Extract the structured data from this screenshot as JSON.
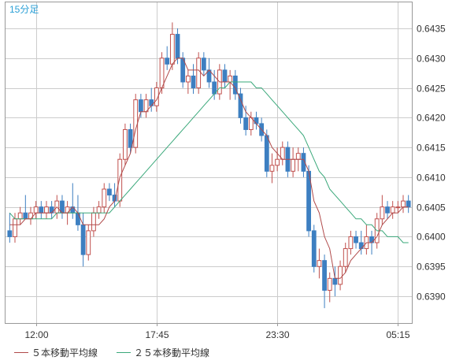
{
  "chart_data": {
    "type": "candlestick",
    "interval_label": "15分足",
    "y_ticks": [
      "0.6390",
      "0.6395",
      "0.6400",
      "0.6405",
      "0.6410",
      "0.6415",
      "0.6420",
      "0.6425",
      "0.6430",
      "0.6435"
    ],
    "x_ticks": [
      "12:00",
      "17:45",
      "23:30",
      "05:15"
    ],
    "ylim": [
      0.63855,
      0.64395
    ],
    "grid": true,
    "colors": {
      "up": "#c0504d",
      "down": "#3d7fc1",
      "ma5": "#b04a4a",
      "ma25": "#3aa87a",
      "grid": "#cccccc",
      "frame": "#999999"
    },
    "legend": [
      {
        "label": "５本移動平均線",
        "color": "#b04a4a"
      },
      {
        "label": "２５本移動平均線",
        "color": "#3aa87a"
      }
    ],
    "candles": [
      [
        0.6401,
        0.6404,
        0.6399,
        0.64
      ],
      [
        0.64,
        0.6404,
        0.6399,
        0.6403
      ],
      [
        0.6403,
        0.6405,
        0.6402,
        0.6404
      ],
      [
        0.6404,
        0.6407,
        0.6403,
        0.6403
      ],
      [
        0.6403,
        0.6405,
        0.6402,
        0.6404
      ],
      [
        0.6404,
        0.6406,
        0.6403,
        0.6405
      ],
      [
        0.6405,
        0.6406,
        0.6403,
        0.6404
      ],
      [
        0.6404,
        0.6406,
        0.6403,
        0.6405
      ],
      [
        0.6405,
        0.6406,
        0.6403,
        0.6404
      ],
      [
        0.6404,
        0.6407,
        0.6403,
        0.6406
      ],
      [
        0.6406,
        0.6407,
        0.6403,
        0.6404
      ],
      [
        0.6404,
        0.6406,
        0.6402,
        0.6405
      ],
      [
        0.6405,
        0.6409,
        0.6403,
        0.6404
      ],
      [
        0.6404,
        0.6407,
        0.6401,
        0.6402
      ],
      [
        0.6402,
        0.6404,
        0.6395,
        0.6397
      ],
      [
        0.6397,
        0.6402,
        0.6396,
        0.6401
      ],
      [
        0.6401,
        0.6405,
        0.64,
        0.6404
      ],
      [
        0.6404,
        0.6406,
        0.6403,
        0.6405
      ],
      [
        0.6405,
        0.6409,
        0.6404,
        0.6408
      ],
      [
        0.6408,
        0.6409,
        0.6406,
        0.6407
      ],
      [
        0.6407,
        0.6409,
        0.6405,
        0.6406
      ],
      [
        0.6406,
        0.6414,
        0.6405,
        0.6413
      ],
      [
        0.6413,
        0.6419,
        0.6412,
        0.6418
      ],
      [
        0.6418,
        0.6419,
        0.6414,
        0.6415
      ],
      [
        0.6415,
        0.6424,
        0.6414,
        0.6423
      ],
      [
        0.6423,
        0.6424,
        0.642,
        0.6421
      ],
      [
        0.6421,
        0.6424,
        0.642,
        0.6423
      ],
      [
        0.6423,
        0.6425,
        0.6421,
        0.6422
      ],
      [
        0.6422,
        0.6426,
        0.6421,
        0.6425
      ],
      [
        0.6425,
        0.6431,
        0.6424,
        0.643
      ],
      [
        0.643,
        0.6432,
        0.6428,
        0.6429
      ],
      [
        0.6429,
        0.6436,
        0.6428,
        0.6434
      ],
      [
        0.6434,
        0.6435,
        0.6429,
        0.643
      ],
      [
        0.643,
        0.6431,
        0.6425,
        0.6426
      ],
      [
        0.6426,
        0.6428,
        0.6424,
        0.6427
      ],
      [
        0.6427,
        0.6429,
        0.6424,
        0.6425
      ],
      [
        0.6425,
        0.6431,
        0.6424,
        0.643
      ],
      [
        0.643,
        0.6431,
        0.6427,
        0.6428
      ],
      [
        0.6428,
        0.643,
        0.6425,
        0.6426
      ],
      [
        0.6426,
        0.6428,
        0.6423,
        0.6424
      ],
      [
        0.6424,
        0.6429,
        0.6423,
        0.6428
      ],
      [
        0.6428,
        0.6429,
        0.6425,
        0.6426
      ],
      [
        0.6426,
        0.6428,
        0.6423,
        0.6427
      ],
      [
        0.6427,
        0.6428,
        0.6423,
        0.6424
      ],
      [
        0.6424,
        0.6425,
        0.6419,
        0.642
      ],
      [
        0.642,
        0.6422,
        0.6417,
        0.6418
      ],
      [
        0.6418,
        0.6421,
        0.6417,
        0.642
      ],
      [
        0.642,
        0.6421,
        0.6418,
        0.6419
      ],
      [
        0.6419,
        0.642,
        0.6416,
        0.6417
      ],
      [
        0.6417,
        0.6418,
        0.641,
        0.6411
      ],
      [
        0.6411,
        0.6414,
        0.6409,
        0.6412
      ],
      [
        0.6412,
        0.6415,
        0.6411,
        0.6413
      ],
      [
        0.6413,
        0.6416,
        0.6412,
        0.6415
      ],
      [
        0.6415,
        0.6416,
        0.641,
        0.6411
      ],
      [
        0.6411,
        0.6415,
        0.641,
        0.6413
      ],
      [
        0.6413,
        0.6415,
        0.6411,
        0.6414
      ],
      [
        0.6414,
        0.6415,
        0.641,
        0.6411
      ],
      [
        0.6411,
        0.6412,
        0.64,
        0.6401
      ],
      [
        0.6401,
        0.6402,
        0.6394,
        0.6395
      ],
      [
        0.6395,
        0.6398,
        0.6393,
        0.6396
      ],
      [
        0.6396,
        0.6397,
        0.6388,
        0.6391
      ],
      [
        0.6391,
        0.6394,
        0.6389,
        0.6393
      ],
      [
        0.6393,
        0.6395,
        0.639,
        0.6392
      ],
      [
        0.6392,
        0.6396,
        0.6391,
        0.6395
      ],
      [
        0.6395,
        0.6399,
        0.6394,
        0.6398
      ],
      [
        0.6398,
        0.6401,
        0.6397,
        0.64
      ],
      [
        0.64,
        0.6401,
        0.6398,
        0.6399
      ],
      [
        0.6399,
        0.6401,
        0.6397,
        0.6398
      ],
      [
        0.6398,
        0.6402,
        0.6397,
        0.64
      ],
      [
        0.64,
        0.6401,
        0.6397,
        0.6399
      ],
      [
        0.6399,
        0.6404,
        0.6398,
        0.6403
      ],
      [
        0.6403,
        0.6407,
        0.6402,
        0.6405
      ],
      [
        0.6405,
        0.6406,
        0.6403,
        0.6404
      ],
      [
        0.6404,
        0.6406,
        0.6403,
        0.6405
      ],
      [
        0.6405,
        0.6406,
        0.6404,
        0.6405
      ],
      [
        0.6405,
        0.6407,
        0.6404,
        0.6406
      ],
      [
        0.6406,
        0.6407,
        0.6404,
        0.6405
      ]
    ],
    "ma5": [
      0.6402,
      0.6402,
      0.6402,
      0.6403,
      0.6403,
      0.6404,
      0.6404,
      0.6404,
      0.6404,
      0.6405,
      0.6404,
      0.6404,
      0.6405,
      0.6404,
      0.6402,
      0.6402,
      0.6402,
      0.6402,
      0.6403,
      0.6405,
      0.6406,
      0.641,
      0.6412,
      0.6414,
      0.6418,
      0.6421,
      0.6421,
      0.6422,
      0.6423,
      0.6425,
      0.6427,
      0.6429,
      0.643,
      0.643,
      0.6428,
      0.6428,
      0.6428,
      0.6427,
      0.6428,
      0.6427,
      0.6426,
      0.6426,
      0.6426,
      0.6425,
      0.6423,
      0.6421,
      0.642,
      0.6419,
      0.6418,
      0.6417,
      0.6415,
      0.6414,
      0.6413,
      0.6413,
      0.6413,
      0.6413,
      0.6413,
      0.6411,
      0.6406,
      0.6404,
      0.64,
      0.6398,
      0.6393,
      0.6393,
      0.6394,
      0.6396,
      0.6397,
      0.6398,
      0.6399,
      0.6399,
      0.64,
      0.6402,
      0.6403,
      0.6404,
      0.6404,
      0.6405,
      0.6405
    ],
    "ma25": [
      0.6404,
      0.6403,
      0.6403,
      0.6403,
      0.6403,
      0.6403,
      0.6403,
      0.6403,
      0.6403,
      0.6404,
      0.6404,
      0.6404,
      0.6404,
      0.6404,
      0.6404,
      0.6404,
      0.6404,
      0.6404,
      0.6404,
      0.6404,
      0.6405,
      0.6406,
      0.6407,
      0.6408,
      0.6409,
      0.641,
      0.6411,
      0.6412,
      0.6413,
      0.6414,
      0.6415,
      0.6416,
      0.6417,
      0.6418,
      0.6419,
      0.642,
      0.6421,
      0.6422,
      0.6423,
      0.6424,
      0.6425,
      0.6425,
      0.6426,
      0.6426,
      0.6426,
      0.6426,
      0.6426,
      0.6425,
      0.6425,
      0.6424,
      0.6423,
      0.6422,
      0.6421,
      0.642,
      0.6419,
      0.6418,
      0.6417,
      0.6415,
      0.6413,
      0.6411,
      0.641,
      0.6408,
      0.6407,
      0.6406,
      0.6405,
      0.6404,
      0.6403,
      0.6403,
      0.6402,
      0.6402,
      0.6401,
      0.6401,
      0.64,
      0.64,
      0.64,
      0.6399,
      0.6399
    ]
  }
}
